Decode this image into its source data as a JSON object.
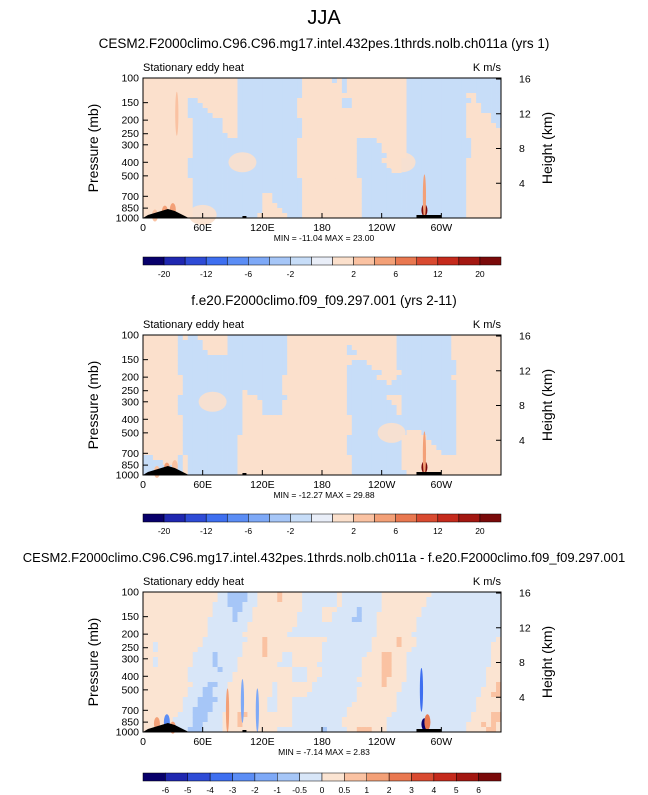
{
  "figure": {
    "title": "JJA"
  },
  "chart_data": [
    {
      "type": "heatmap",
      "id": "p1",
      "title": "CESM2.F2000climo.C96.C96.mg17.intel.432pes.1thrds.nolb.ch011a (yrs 1)",
      "left_label": "Stationary eddy heat",
      "units": "K m/s",
      "ylabel": "Pressure (mb)",
      "ylabel_right": "Height (km)",
      "x_ticks": [
        "0",
        "60E",
        "120E",
        "180",
        "120W",
        "60W"
      ],
      "y_ticks": [
        "100",
        "150",
        "200",
        "250",
        "300",
        "400",
        "500",
        "700",
        "850",
        "1000"
      ],
      "y_ticks_right": [
        "16",
        "12",
        "8",
        "4"
      ],
      "ylim": [
        1000,
        100
      ],
      "xlim": [
        0,
        360
      ],
      "stats": "MIN = -11.04  MAX = 23.00",
      "min": -11.04,
      "max": 23.0,
      "levels": [
        -20,
        -16,
        -12,
        -8,
        -6,
        -4,
        -2,
        -1,
        1,
        2,
        4,
        6,
        8,
        12,
        16,
        20
      ],
      "level_labels": [
        "-20",
        "-12",
        "-6",
        "-2",
        "2",
        "6",
        "12",
        "20"
      ],
      "colors": [
        "#08006b",
        "#1f27b0",
        "#2e4bd6",
        "#3e6ff0",
        "#5b8df5",
        "#7ea9f7",
        "#a6c6f7",
        "#c7ddf8",
        "#e9eef8",
        "#fbe0cc",
        "#fac2a2",
        "#f3a077",
        "#e97850",
        "#d94a30",
        "#c52a1c",
        "#a31711",
        "#7a0a0a"
      ],
      "features": [
        {
          "lon": 12,
          "lev": 960,
          "kind": "spike",
          "v": 4
        },
        {
          "lon": 22,
          "lev": 900,
          "kind": "spike",
          "v": 6
        },
        {
          "lon": 30,
          "lev": 870,
          "kind": "spike",
          "v": 5
        },
        {
          "lon": 34,
          "lev": 180,
          "kind": "line",
          "v": 3
        },
        {
          "lon": 60,
          "lev": 950,
          "kind": "blob",
          "v": 2
        },
        {
          "lon": 100,
          "lev": 400,
          "kind": "blob",
          "v": 1.5
        },
        {
          "lon": 180,
          "lev": 500,
          "kind": "blob",
          "v": 1.5
        },
        {
          "lon": 260,
          "lev": 400,
          "kind": "blob",
          "v": 2
        },
        {
          "lon": 283,
          "lev": 880,
          "kind": "spike",
          "v": 23
        },
        {
          "lon": 283,
          "lev": 700,
          "kind": "line",
          "v": 6
        }
      ],
      "background": "mixed"
    },
    {
      "type": "heatmap",
      "id": "p2",
      "title": "f.e20.F2000climo.f09_f09.297.001 (yrs 2-11)",
      "left_label": "Stationary eddy heat",
      "units": "K m/s",
      "ylabel": "Pressure (mb)",
      "ylabel_right": "Height (km)",
      "x_ticks": [
        "0",
        "60E",
        "120E",
        "180",
        "120W",
        "60W"
      ],
      "y_ticks": [
        "100",
        "150",
        "200",
        "250",
        "300",
        "400",
        "500",
        "700",
        "850",
        "1000"
      ],
      "y_ticks_right": [
        "16",
        "12",
        "8",
        "4"
      ],
      "ylim": [
        1000,
        100
      ],
      "xlim": [
        0,
        360
      ],
      "stats": "MIN = -12.27  MAX = 29.88",
      "min": -12.27,
      "max": 29.88,
      "levels": [
        -20,
        -16,
        -12,
        -8,
        -6,
        -4,
        -2,
        -1,
        1,
        2,
        4,
        6,
        8,
        12,
        16,
        20
      ],
      "level_labels": [
        "-20",
        "-12",
        "-6",
        "-2",
        "2",
        "6",
        "12",
        "20"
      ],
      "colors": [
        "#08006b",
        "#1f27b0",
        "#2e4bd6",
        "#3e6ff0",
        "#5b8df5",
        "#7ea9f7",
        "#a6c6f7",
        "#c7ddf8",
        "#e9eef8",
        "#fbe0cc",
        "#fac2a2",
        "#f3a077",
        "#e97850",
        "#d94a30",
        "#c52a1c",
        "#a31711",
        "#7a0a0a"
      ],
      "features": [
        {
          "lon": 14,
          "lev": 950,
          "kind": "spike",
          "v": 4
        },
        {
          "lon": 24,
          "lev": 900,
          "kind": "spike",
          "v": 6
        },
        {
          "lon": 32,
          "lev": 870,
          "kind": "spike",
          "v": 4
        },
        {
          "lon": 70,
          "lev": 300,
          "kind": "blob",
          "v": 1.5
        },
        {
          "lon": 180,
          "lev": 250,
          "kind": "blob",
          "v": 1.5
        },
        {
          "lon": 250,
          "lev": 500,
          "kind": "blob",
          "v": 2
        },
        {
          "lon": 283,
          "lev": 880,
          "kind": "spike",
          "v": 29.88
        },
        {
          "lon": 283,
          "lev": 700,
          "kind": "line",
          "v": 6
        }
      ],
      "background": "warm"
    },
    {
      "type": "heatmap",
      "id": "p3",
      "title": "CESM2.F2000climo.C96.C96.mg17.intel.432pes.1thrds.nolb.ch011a - f.e20.F2000climo.f09_f09.297.001",
      "left_label": "Stationary eddy heat",
      "units": "K m/s",
      "ylabel": "Pressure (mb)",
      "ylabel_right": "Height (km)",
      "x_ticks": [
        "0",
        "60E",
        "120E",
        "180",
        "120W",
        "60W"
      ],
      "y_ticks": [
        "100",
        "150",
        "200",
        "250",
        "300",
        "400",
        "500",
        "700",
        "850",
        "1000"
      ],
      "y_ticks_right": [
        "16",
        "12",
        "8",
        "4"
      ],
      "ylim": [
        1000,
        100
      ],
      "xlim": [
        0,
        360
      ],
      "stats": "MIN = -7.14  MAX =  2.83",
      "min": -7.14,
      "max": 2.83,
      "levels": [
        -6,
        -5,
        -4,
        -3,
        -2,
        -1,
        -0.5,
        0,
        0.5,
        1,
        2,
        3,
        4,
        5,
        6
      ],
      "level_labels": [
        "-6",
        "-5",
        "-4",
        "-3",
        "-2",
        "-1",
        "-0.5",
        "0",
        "0.5",
        "1",
        "2",
        "3",
        "4",
        "5",
        "6"
      ],
      "colors": [
        "#08006b",
        "#1f27b0",
        "#2e4bd6",
        "#3e6ff0",
        "#5b8df5",
        "#7ea9f7",
        "#a6c6f7",
        "#d8e6f8",
        "#fbe4d2",
        "#fac2a2",
        "#f3a077",
        "#e97850",
        "#d94a30",
        "#c52a1c",
        "#a31711",
        "#7a0a0a"
      ],
      "features": [
        {
          "lon": 14,
          "lev": 870,
          "kind": "spike",
          "v": 1.5
        },
        {
          "lon": 24,
          "lev": 850,
          "kind": "spike",
          "v": -2
        },
        {
          "lon": 30,
          "lev": 930,
          "kind": "spike",
          "v": 2
        },
        {
          "lon": 85,
          "lev": 700,
          "kind": "line",
          "v": 1.5
        },
        {
          "lon": 100,
          "lev": 600,
          "kind": "line",
          "v": -1
        },
        {
          "lon": 115,
          "lev": 700,
          "kind": "line",
          "v": -1.5
        },
        {
          "lon": 280,
          "lev": 500,
          "kind": "line",
          "v": -3
        },
        {
          "lon": 283,
          "lev": 880,
          "kind": "spike",
          "v": -7.14
        },
        {
          "lon": 286,
          "lev": 850,
          "kind": "spike",
          "v": 2.5
        }
      ],
      "background": "diff"
    }
  ]
}
